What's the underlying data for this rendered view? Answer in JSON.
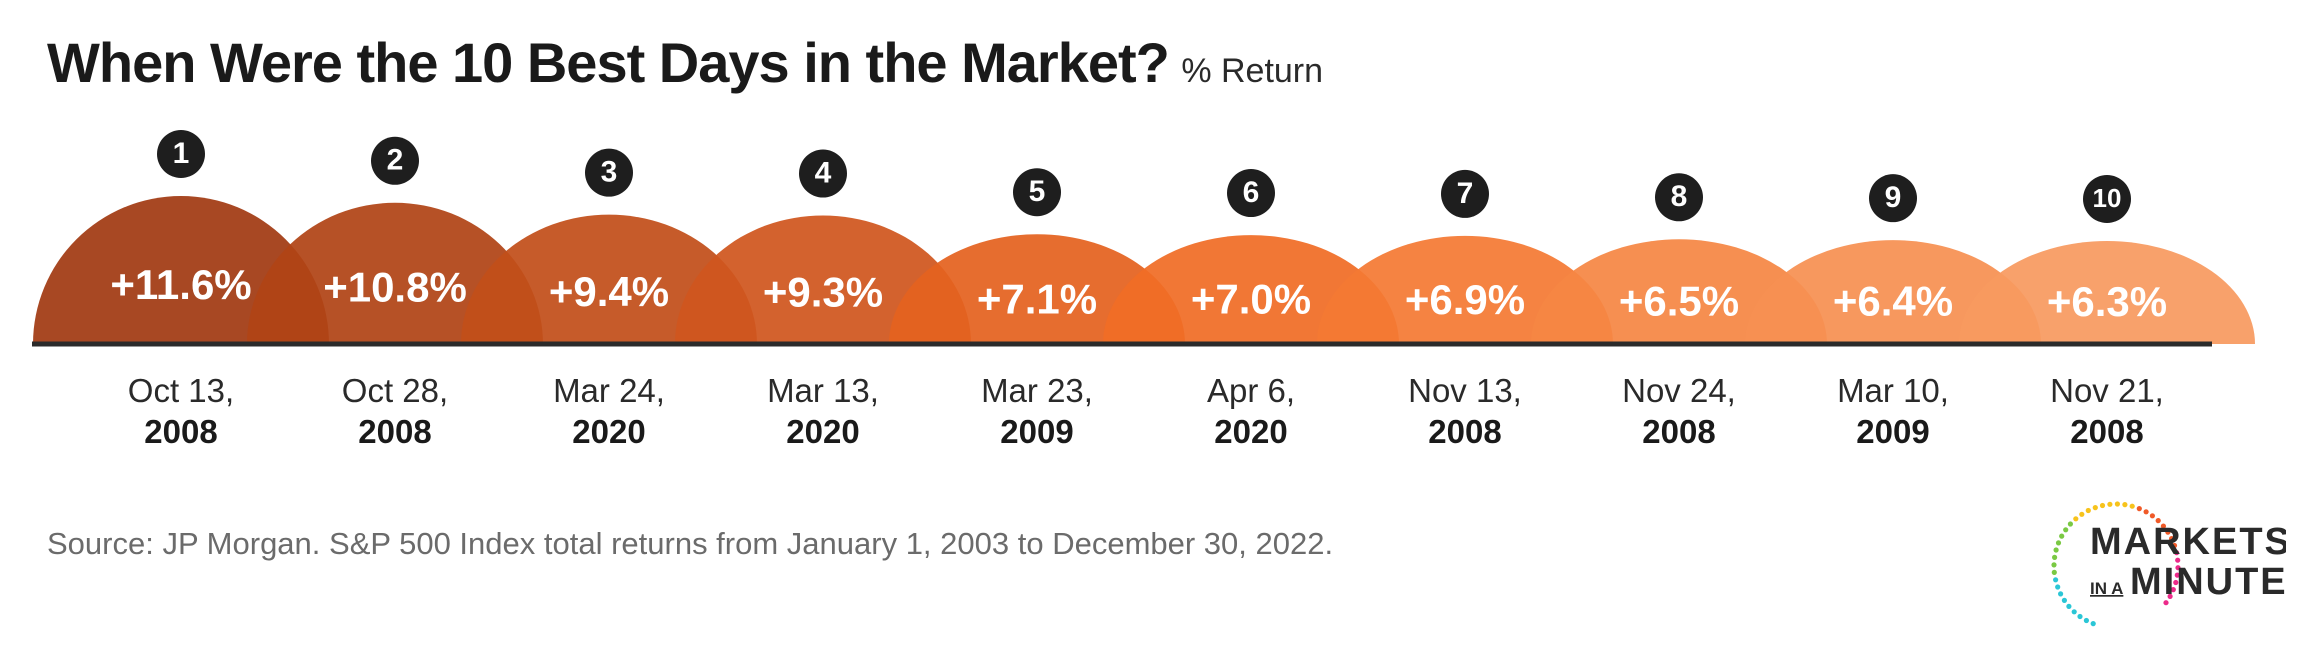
{
  "chart_data": {
    "type": "bar",
    "title": "When Were the 10 Best Days in the Market?",
    "subtitle": "% Return",
    "unit": "%",
    "series": [
      {
        "values": [
          11.6,
          10.8,
          9.4,
          9.3,
          7.1,
          7.0,
          6.9,
          6.5,
          6.4,
          6.3
        ]
      }
    ],
    "ranks": [
      "1",
      "2",
      "3",
      "4",
      "5",
      "6",
      "7",
      "8",
      "9",
      "10"
    ],
    "value_labels": [
      "+11.6%",
      "+10.8%",
      "+9.4%",
      "+9.3%",
      "+7.1%",
      "+7.0%",
      "+6.9%",
      "+6.5%",
      "+6.4%",
      "+6.3%"
    ],
    "dates": [
      {
        "day": "Oct 13,",
        "year": "2008"
      },
      {
        "day": "Oct 28,",
        "year": "2008"
      },
      {
        "day": "Mar 24,",
        "year": "2020"
      },
      {
        "day": "Mar 13,",
        "year": "2020"
      },
      {
        "day": "Mar 23,",
        "year": "2009"
      },
      {
        "day": "Apr 6,",
        "year": "2020"
      },
      {
        "day": "Nov 13,",
        "year": "2008"
      },
      {
        "day": "Nov 24,",
        "year": "2008"
      },
      {
        "day": "Mar 10,",
        "year": "2009"
      },
      {
        "day": "Nov 21,",
        "year": "2008"
      }
    ],
    "colors": [
      "#a13a12",
      "#b04416",
      "#c24f1a",
      "#d0561e",
      "#e4621f",
      "#f06d26",
      "#f47a34",
      "#f58644",
      "#f69052",
      "#f79a60"
    ],
    "source": "Source: JP Morgan. S&P 500 Index total returns from January 1, 2003 to December 30, 2022."
  },
  "logo": {
    "line1": "MARKETS",
    "small": "IN A",
    "line2": "MINUTE"
  }
}
